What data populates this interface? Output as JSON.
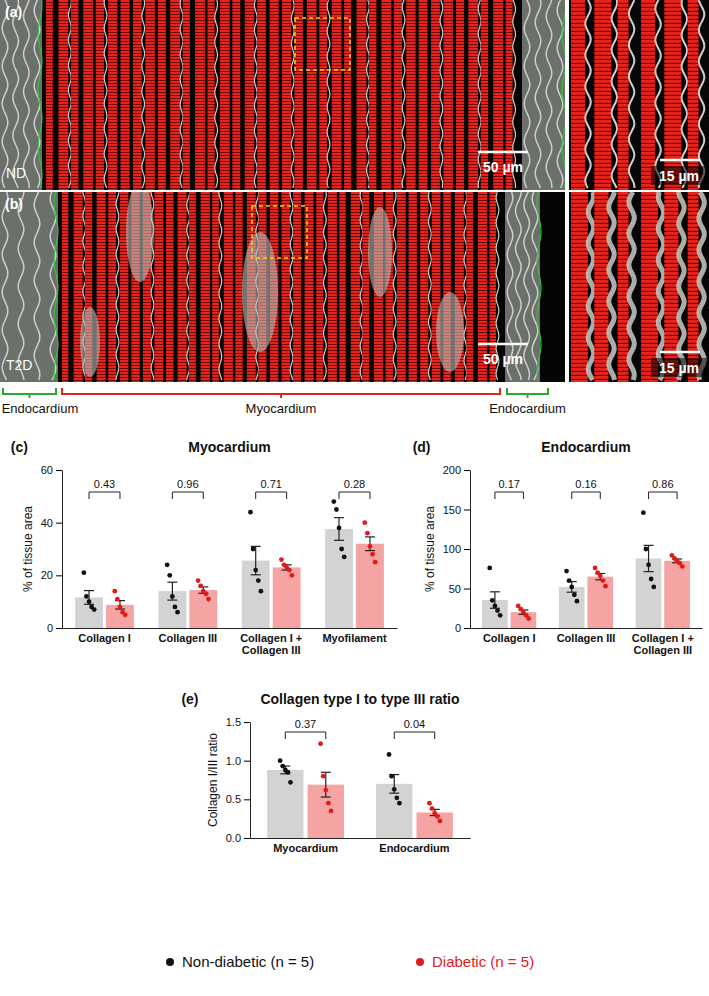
{
  "images": {
    "panels": [
      {
        "letter": "(a)",
        "label": "ND",
        "scale_bar": "50 µm",
        "zoom_scale_bar": "15 µm"
      },
      {
        "letter": "(b)",
        "label": "T2D",
        "scale_bar": "50 µm",
        "zoom_scale_bar": "15 µm"
      }
    ],
    "regions": [
      "Endocardium",
      "Myocardium",
      "Endocardium"
    ]
  },
  "chart_data": [
    {
      "type": "bar",
      "panel": "(c)",
      "title": "Myocardium",
      "y_label": "% of tissue area",
      "categories": [
        "Collagen I",
        "Collagen III",
        "Collagen I + Collagen III",
        "Myofilament"
      ],
      "series": [
        {
          "name": "Non-diabetic (n = 5)",
          "color": "#d3d3d3",
          "values": [
            11.6,
            14,
            25.6,
            37.6
          ],
          "errors": [
            2.6,
            3.4,
            5.4,
            4.3
          ],
          "points": [
            [
              21,
              12,
              10,
              8,
              7
            ],
            [
              24,
              20,
              12,
              8,
              6
            ],
            [
              44,
              30,
              22,
              18,
              14
            ],
            [
              48,
              45,
              38,
              30,
              27
            ]
          ]
        },
        {
          "name": "Diabetic (n = 5)",
          "color": "#f5a3a3",
          "values": [
            8.8,
            14.4,
            23,
            32
          ],
          "errors": [
            1.6,
            1.2,
            1,
            2.6
          ],
          "points": [
            [
              14,
              11,
              8,
              6,
              5
            ],
            [
              18,
              16,
              14,
              13,
              11
            ],
            [
              26,
              24,
              23,
              22,
              20
            ],
            [
              40,
              36,
              31,
              28,
              25
            ]
          ]
        }
      ],
      "p_values": [
        0.43,
        0.96,
        0.71,
        0.28
      ],
      "ylim": [
        0,
        60
      ],
      "yticks": [
        0,
        20,
        40,
        60
      ],
      "legend": "bottom"
    },
    {
      "type": "bar",
      "panel": "(d)",
      "title": "Endocardium",
      "y_label": "% of tissue area",
      "categories": [
        "Collagen I",
        "Collagen III",
        "Collagen I + Collagen III"
      ],
      "series": [
        {
          "name": "Non-diabetic (n = 5)",
          "color": "#d3d3d3",
          "values": [
            35.4,
            52,
            88
          ],
          "errors": [
            10.4,
            6.7,
            16.6
          ],
          "points": [
            [
              76,
              35,
              28,
              22,
              16
            ],
            [
              72,
              60,
              52,
              42,
              34
            ],
            [
              146,
              100,
              80,
              62,
              52
            ]
          ]
        },
        {
          "name": "Diabetic (n = 5)",
          "color": "#f5a3a3",
          "values": [
            20,
            65,
            85
          ],
          "errors": [
            2.8,
            4,
            2.4
          ],
          "points": [
            [
              28,
              24,
              20,
              16,
              12
            ],
            [
              76,
              70,
              66,
              60,
              53
            ],
            [
              92,
              88,
              85,
              82,
              78
            ]
          ]
        }
      ],
      "p_values": [
        0.17,
        0.16,
        0.86
      ],
      "ylim": [
        0,
        200
      ],
      "yticks": [
        0,
        50,
        100,
        150,
        200
      ]
    },
    {
      "type": "bar",
      "panel": "(e)",
      "title": "Collagen type I to type III ratio",
      "y_label": "Collagen I/III ratio",
      "categories": [
        "Myocardium",
        "Endocardium"
      ],
      "series": [
        {
          "name": "Non-diabetic (n = 5)",
          "color": "#d3d3d3",
          "values": [
            0.88,
            0.7
          ],
          "errors": [
            0.05,
            0.12
          ],
          "points": [
            [
              1.0,
              0.93,
              0.88,
              0.85,
              0.72
            ],
            [
              1.08,
              0.8,
              0.63,
              0.52,
              0.45
            ]
          ]
        },
        {
          "name": "Diabetic (n = 5)",
          "color": "#f5a3a3",
          "values": [
            0.69,
            0.33
          ],
          "errors": [
            0.16,
            0.04
          ],
          "points": [
            [
              1.22,
              0.8,
              0.62,
              0.45,
              0.35
            ],
            [
              0.45,
              0.38,
              0.32,
              0.28,
              0.22
            ]
          ]
        }
      ],
      "p_values": [
        0.37,
        0.04
      ],
      "ylim": [
        0,
        1.5
      ],
      "yticks": [
        {
          "value": 0,
          "label": "0.0"
        },
        0.5,
        {
          "value": 1,
          "label": "1.0"
        },
        1.5
      ]
    }
  ]
}
